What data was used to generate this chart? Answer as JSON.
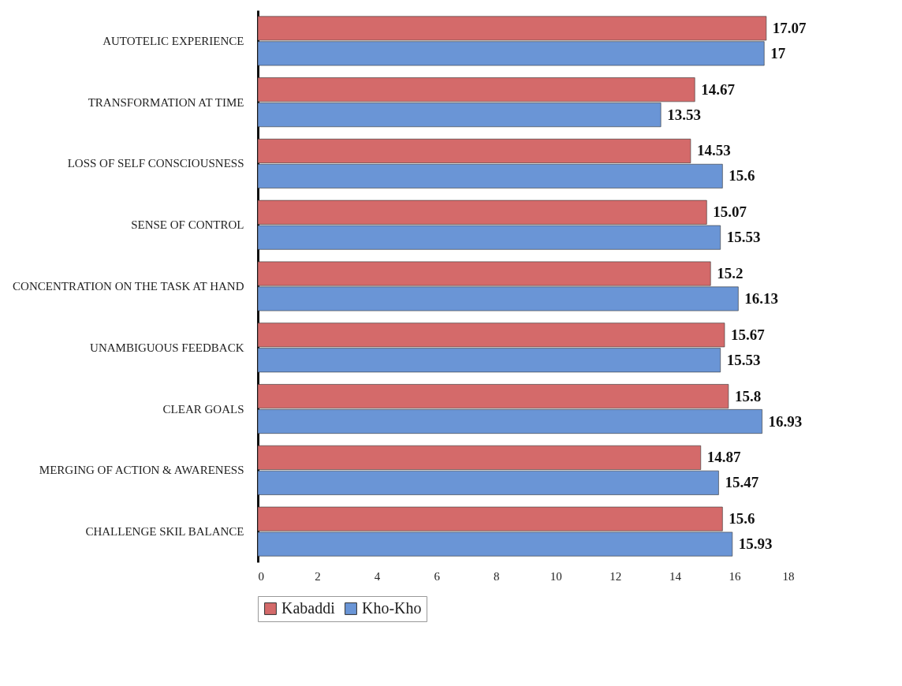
{
  "chart_data": {
    "type": "bar",
    "orientation": "horizontal",
    "categories": [
      "AUTOTELIC EXPERIENCE",
      "TRANSFORMATION AT TIME",
      "LOSS OF SELF CONSCIOUSNESS",
      "SENSE OF CONTROL",
      "CONCENTRATION ON THE TASK AT HAND",
      "UNAMBIGUOUS FEEDBACK",
      "CLEAR GOALS",
      "MERGING OF ACTION & AWARENESS",
      "CHALLENGE SKIL BALANCE"
    ],
    "series": [
      {
        "name": "Kabaddi",
        "color": "#d46a6a",
        "values": [
          17.07,
          14.67,
          14.53,
          15.07,
          15.2,
          15.67,
          15.8,
          14.87,
          15.6
        ]
      },
      {
        "name": "Kho-Kho",
        "color": "#6a95d6",
        "values": [
          17,
          13.53,
          15.6,
          15.53,
          16.13,
          15.53,
          16.93,
          15.47,
          15.93
        ]
      }
    ],
    "xlim": [
      0,
      18
    ],
    "xticks": [
      0,
      2,
      4,
      6,
      8,
      10,
      12,
      14,
      16,
      18
    ],
    "data_labels": true,
    "grid": false,
    "legend": "bottom"
  }
}
